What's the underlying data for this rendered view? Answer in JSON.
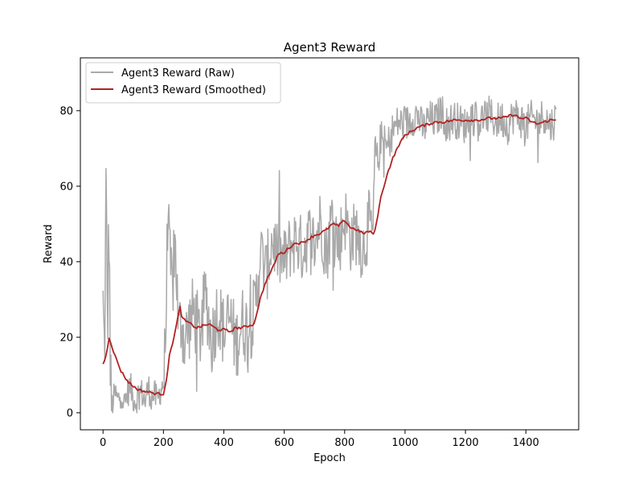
{
  "chart_data": {
    "type": "line",
    "title": "Agent3 Reward",
    "xlabel": "Epoch",
    "ylabel": "Reward",
    "xlim": [
      -75,
      1575
    ],
    "ylim": [
      -4.5,
      94
    ],
    "xticks": [
      0,
      200,
      400,
      600,
      800,
      1000,
      1200,
      1400
    ],
    "yticks": [
      0,
      20,
      40,
      60,
      80
    ],
    "grid": false,
    "legend_position": "top-left",
    "series": [
      {
        "name": "Agent3 Reward (Raw)",
        "color": "#a9a9a9",
        "style": "noisy",
        "x": [
          0,
          5,
          10,
          15,
          20,
          25,
          30,
          40,
          50,
          60,
          70,
          80,
          90,
          100,
          110,
          120,
          130,
          140,
          150,
          160,
          170,
          180,
          190,
          200,
          205,
          210,
          215,
          220,
          230,
          240,
          250,
          260,
          270,
          280,
          300,
          320,
          340,
          360,
          380,
          400,
          420,
          440,
          460,
          480,
          500,
          510,
          520,
          540,
          560,
          580,
          600,
          620,
          640,
          660,
          680,
          700,
          720,
          740,
          760,
          780,
          800,
          820,
          840,
          860,
          880,
          895,
          900,
          910,
          920,
          940,
          960,
          980,
          1000,
          1020,
          1040,
          1060,
          1080,
          1100,
          1120,
          1140,
          1160,
          1180,
          1200,
          1220,
          1240,
          1260,
          1280,
          1300,
          1320,
          1340,
          1360,
          1380,
          1400,
          1420,
          1440,
          1460,
          1480,
          1500
        ],
        "y": [
          28,
          14,
          58,
          22,
          51,
          4,
          2,
          5,
          3,
          6,
          2,
          5,
          7,
          4,
          3,
          6,
          5,
          3,
          7,
          4,
          5,
          3,
          6,
          8,
          15,
          30,
          58,
          40,
          33,
          45,
          21,
          25,
          18,
          22,
          27,
          20,
          31,
          19,
          28,
          21,
          25,
          18,
          24,
          22,
          26,
          32,
          43,
          37,
          46,
          42,
          40,
          44,
          46,
          43,
          47,
          45,
          51,
          42,
          53,
          44,
          52,
          46,
          48,
          43,
          50,
          47,
          70,
          66,
          73,
          70,
          75,
          77,
          76,
          78,
          79,
          75,
          78,
          77,
          80,
          76,
          78,
          77,
          76,
          79,
          77,
          78,
          79,
          77,
          78,
          76,
          79,
          78,
          76,
          78,
          77,
          79,
          76,
          78
        ]
      },
      {
        "name": "Agent3 Reward (Smoothed)",
        "color": "#b22222",
        "style": "smooth",
        "x": [
          0,
          10,
          20,
          40,
          60,
          80,
          100,
          120,
          150,
          180,
          200,
          210,
          220,
          240,
          255,
          262,
          270,
          290,
          310,
          330,
          350,
          380,
          400,
          420,
          440,
          460,
          480,
          500,
          520,
          540,
          560,
          580,
          600,
          620,
          640,
          660,
          680,
          700,
          720,
          740,
          760,
          780,
          800,
          820,
          840,
          860,
          880,
          895,
          900,
          920,
          940,
          960,
          980,
          1000,
          1020,
          1040,
          1060,
          1080,
          1100,
          1130,
          1160,
          1200,
          1240,
          1280,
          1320,
          1360,
          1380,
          1400,
          1420,
          1440,
          1460,
          1480,
          1500
        ],
        "y": [
          13,
          15,
          20,
          15,
          11,
          8.5,
          7,
          6,
          5.5,
          5,
          5,
          9,
          15,
          22,
          28,
          25,
          24.5,
          23.5,
          22.5,
          23,
          23.5,
          22,
          22,
          21.5,
          22.5,
          22.5,
          23,
          23.5,
          30,
          35,
          38,
          42,
          42.5,
          44,
          45,
          45,
          46,
          47,
          47.5,
          48.5,
          50,
          49.5,
          51,
          49,
          48.5,
          47.5,
          48,
          47.5,
          48,
          57,
          63,
          67.5,
          71,
          73.5,
          74.5,
          75.5,
          76,
          76.5,
          77,
          77,
          77.5,
          77.5,
          77.5,
          78,
          78,
          79,
          78,
          78,
          77,
          76.5,
          77,
          77.5,
          77.5
        ]
      }
    ]
  }
}
